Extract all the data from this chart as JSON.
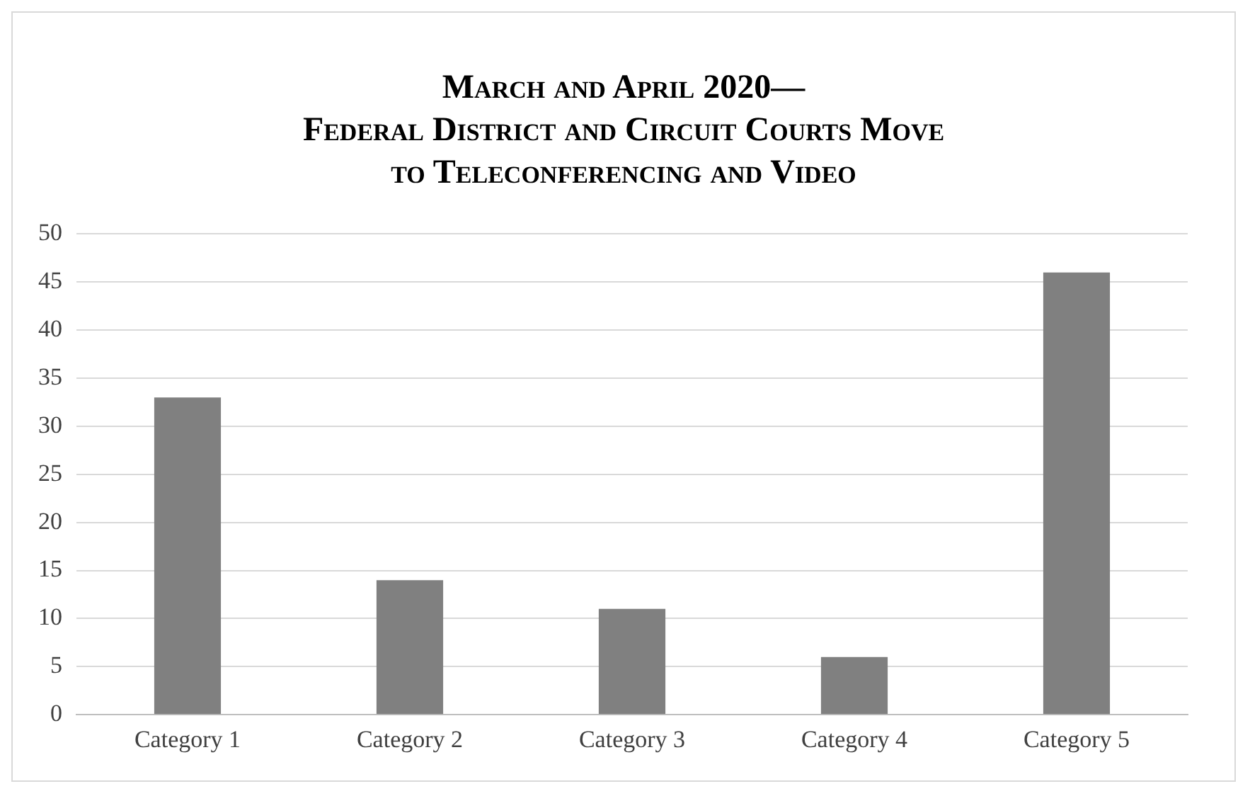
{
  "chart_data": {
    "type": "bar",
    "title": "March and April 2020—\nFederal District and Circuit Courts Move\nto Teleconferencing and Video",
    "categories": [
      "Category 1",
      "Category 2",
      "Category 3",
      "Category 4",
      "Category 5"
    ],
    "values": [
      33,
      14,
      11,
      6,
      46
    ],
    "color": "#808080",
    "ylim": [
      0,
      50
    ],
    "yticks": [
      0,
      5,
      10,
      15,
      20,
      25,
      30,
      35,
      40,
      45,
      50
    ],
    "grid": "y",
    "legend": false
  }
}
